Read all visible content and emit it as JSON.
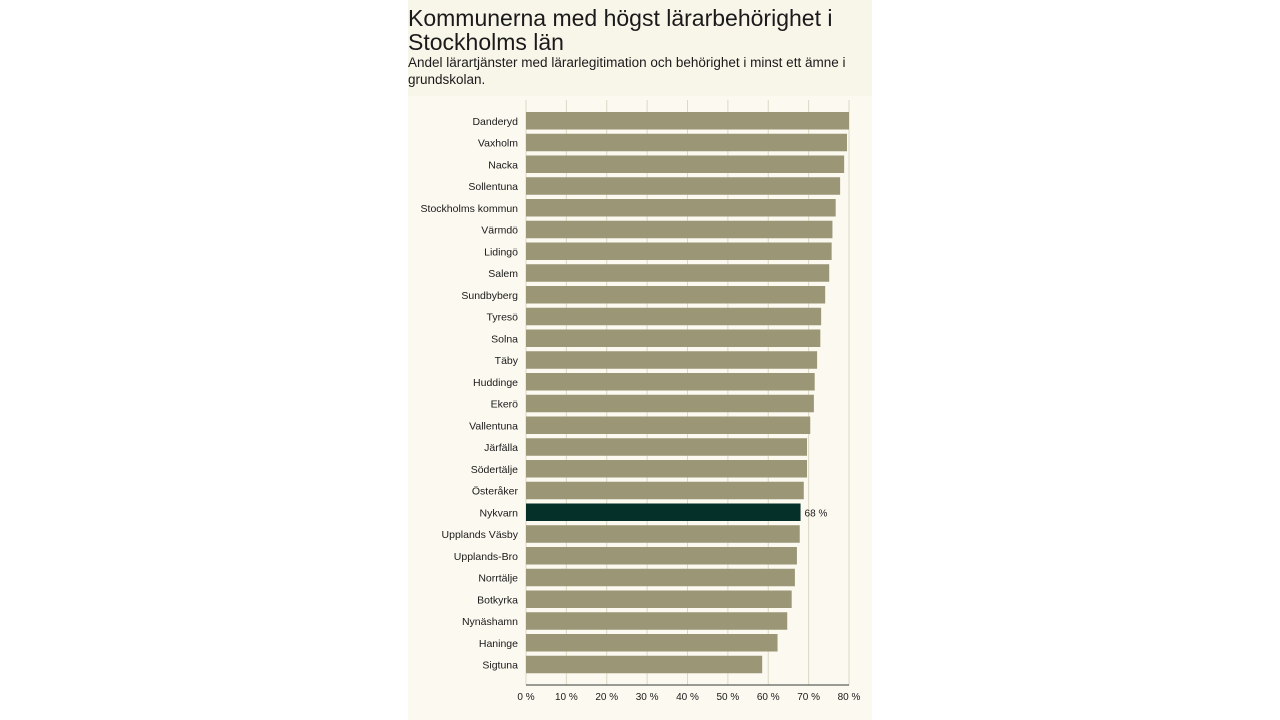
{
  "title": "Kommunerna med högst lärarbehörighet i Stockholms län",
  "subtitle": "Andel lärartjänster med lärarlegitimation och behörighet i minst ett ämne i grundskolan.",
  "colors": {
    "bar": "#9a9676",
    "highlight": "#053029",
    "text": "#1a1a1a",
    "grid": "#dcd8c6",
    "axis": "#3a3a3a"
  },
  "chart_data": {
    "type": "bar",
    "orientation": "horizontal",
    "title": "Kommunerna med högst lärarbehörighet i Stockholms län",
    "subtitle": "Andel lärartjänster med lärarlegitimation och behörighet i minst ett ämne i grundskolan.",
    "xlabel": "",
    "ylabel": "",
    "xlim": [
      0,
      80
    ],
    "xticks": [
      0,
      10,
      20,
      30,
      40,
      50,
      60,
      70,
      80
    ],
    "xtick_labels": [
      "0 %",
      "10 %",
      "20 %",
      "30 %",
      "40 %",
      "50 %",
      "60 %",
      "70 %",
      "80 %"
    ],
    "grid": true,
    "categories": [
      "Danderyd",
      "Vaxholm",
      "Nacka",
      "Sollentuna",
      "Stockholms kommun",
      "Värmdö",
      "Lidingö",
      "Salem",
      "Sundbyberg",
      "Tyresö",
      "Solna",
      "Täby",
      "Huddinge",
      "Ekerö",
      "Vallentuna",
      "Järfälla",
      "Södertälje",
      "Österåker",
      "Nykvarn",
      "Upplands Väsby",
      "Upplands-Bro",
      "Norrtälje",
      "Botkyrka",
      "Nynäshamn",
      "Haninge",
      "Sigtuna"
    ],
    "values": [
      80,
      79.5,
      78.8,
      77.8,
      76.7,
      75.9,
      75.7,
      75.1,
      74.1,
      73.1,
      72.9,
      72.1,
      71.5,
      71.3,
      70.4,
      69.6,
      69.6,
      68.8,
      68,
      67.8,
      67.1,
      66.6,
      65.8,
      64.7,
      62.3,
      58.5
    ],
    "highlight": {
      "category": "Nykvarn",
      "label": "68 %"
    }
  }
}
